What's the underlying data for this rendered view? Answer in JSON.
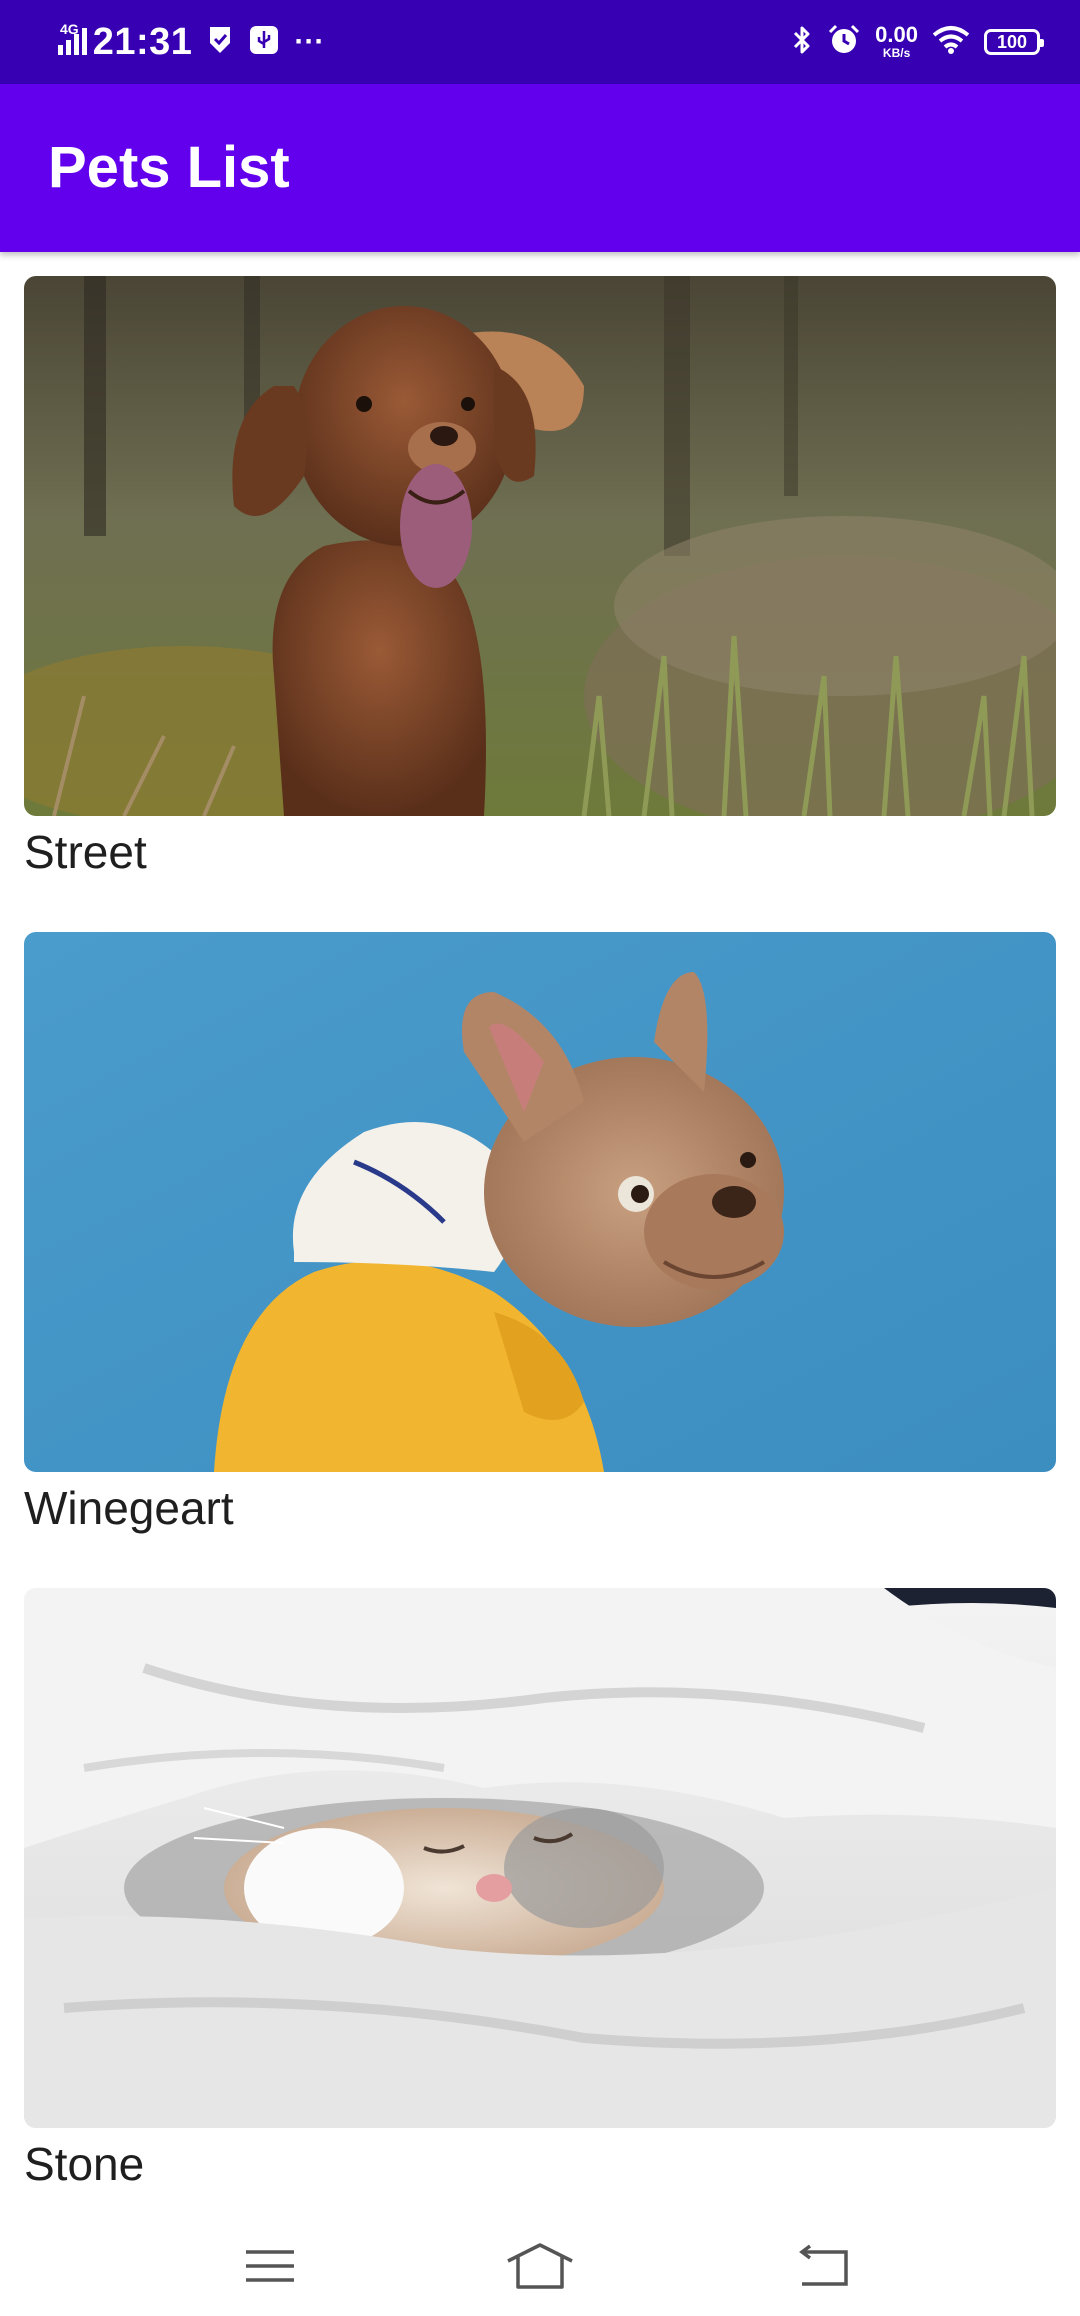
{
  "status_bar": {
    "network": "4G",
    "time": "21:31",
    "more": "···",
    "speed_value": "0.00",
    "speed_unit": "KB/s",
    "battery": "100"
  },
  "app_bar": {
    "title": "Pets List"
  },
  "pets": [
    {
      "name": "Street",
      "image": "brown-dog-in-field"
    },
    {
      "name": "Winegeart",
      "image": "french-bulldog-yellow-hoodie"
    },
    {
      "name": "Stone",
      "image": "cat-under-blanket"
    }
  ],
  "nav": {
    "menu_icon": "menu-icon",
    "home_icon": "home-icon",
    "back_icon": "back-icon"
  }
}
